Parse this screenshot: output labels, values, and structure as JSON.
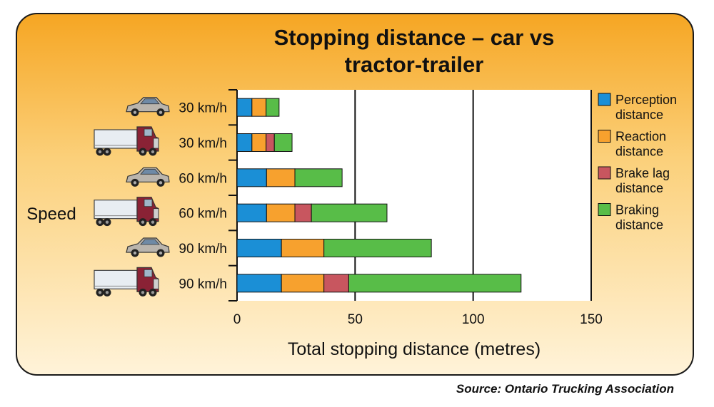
{
  "chart_data": {
    "type": "bar",
    "stacked": true,
    "orientation": "horizontal",
    "title": "Stopping distance – car vs tractor-trailer",
    "xlabel": "Total stopping distance (metres)",
    "ylabel": "Speed",
    "xlim": [
      0,
      150
    ],
    "xticks": [
      "0",
      "50",
      "100",
      "150"
    ],
    "grid": true,
    "legend_position": "right",
    "categories": [
      {
        "label": "30 km/h",
        "vehicle": "car-icon"
      },
      {
        "label": "30 km/h",
        "vehicle": "truck-icon"
      },
      {
        "label": "60 km/h",
        "vehicle": "car-icon"
      },
      {
        "label": "60 km/h",
        "vehicle": "truck-icon"
      },
      {
        "label": "90 km/h",
        "vehicle": "car-icon"
      },
      {
        "label": "90 km/h",
        "vehicle": "truck-icon"
      }
    ],
    "series": [
      {
        "name": "Perception distance",
        "legend_lines": [
          "Perception",
          "distance"
        ],
        "color": "#1b8fd6",
        "values": [
          6.3,
          6.3,
          12.5,
          12.5,
          18.8,
          18.8
        ]
      },
      {
        "name": "Reaction distance",
        "legend_lines": [
          "Reaction",
          "distance"
        ],
        "color": "#f7a12e",
        "values": [
          6,
          6,
          12,
          12,
          18,
          18
        ]
      },
      {
        "name": "Brake lag distance",
        "legend_lines": [
          "Brake lag",
          "distance"
        ],
        "color": "#c8565f",
        "values": [
          0,
          3.5,
          0,
          7,
          0,
          10.5
        ]
      },
      {
        "name": "Braking distance",
        "legend_lines": [
          "Braking",
          "distance"
        ],
        "color": "#58bd48",
        "values": [
          5.5,
          7.5,
          20,
          32,
          45.5,
          73
        ]
      }
    ]
  },
  "source": "Source:  Ontario Trucking Association"
}
